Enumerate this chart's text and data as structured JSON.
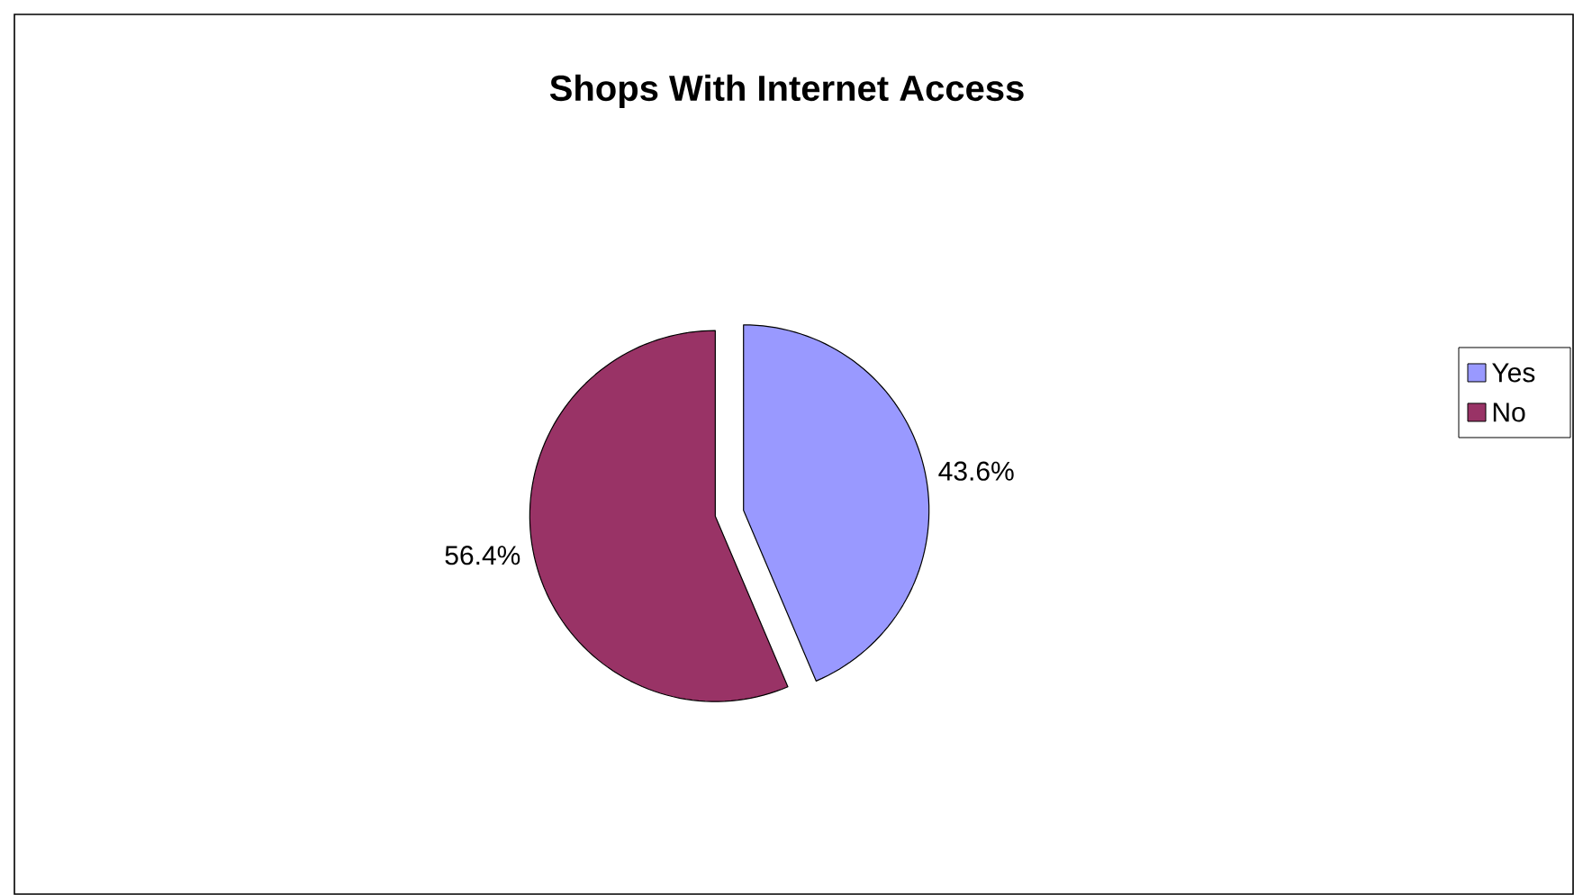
{
  "chart_data": {
    "type": "pie",
    "title": "Shops With Internet Access",
    "categories": [
      "Yes",
      "No"
    ],
    "values": [
      43.6,
      56.4
    ],
    "value_labels": [
      "43.6%",
      "56.4%"
    ],
    "colors": [
      "#9999ff",
      "#993366"
    ],
    "legend": "right"
  }
}
